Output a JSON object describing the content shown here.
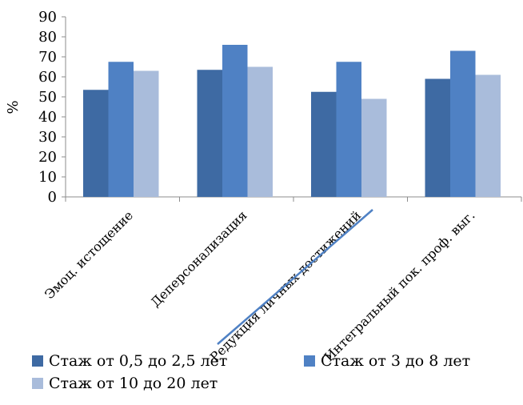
{
  "chart_data": {
    "type": "bar",
    "ylabel": "%",
    "ylim": [
      0,
      90
    ],
    "yticks": [
      0,
      10,
      20,
      30,
      40,
      50,
      60,
      70,
      80,
      90
    ],
    "grid": false,
    "legend_position": "bottom",
    "categories": [
      "Эмоц. истощение",
      "Деперсонализация",
      "Редукция личных достижений",
      "Интегральный пок. проф. выг."
    ],
    "series": [
      {
        "name": "Стаж от 0,5 до 2,5 лет",
        "color": "#3e6aa3",
        "values": [
          53.5,
          63.5,
          52.5,
          59
        ]
      },
      {
        "name": "Стаж от 3 до 8 лет",
        "color": "#4f81c4",
        "values": [
          67.5,
          76,
          67.5,
          73
        ]
      },
      {
        "name": "Стаж от 10 до 20 лет",
        "color": "#a9bcdb",
        "values": [
          63,
          65,
          49,
          61
        ]
      }
    ]
  }
}
